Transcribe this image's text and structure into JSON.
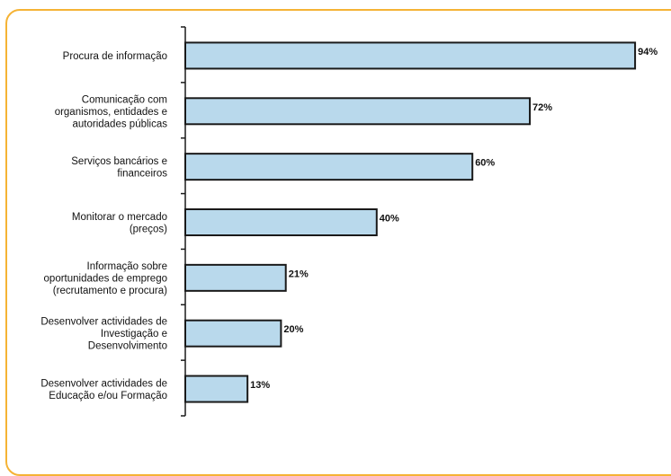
{
  "colors": {
    "frame_border": "#f5b335",
    "bar_fill": "#b9d9ec",
    "bar_stroke": "#1a1a1a",
    "axis": "#1a1a1a"
  },
  "chart_data": {
    "type": "bar",
    "orientation": "horizontal",
    "title": "",
    "xlabel": "",
    "ylabel": "",
    "xlim": [
      0,
      100
    ],
    "grid": false,
    "categories": [
      [
        "Procura de informação"
      ],
      [
        "Comunicação com",
        "organismos, entidades e",
        "autoridades públicas"
      ],
      [
        "Serviços bancários e",
        "financeiros"
      ],
      [
        "Monitorar o mercado",
        "(preços)"
      ],
      [
        "Informação sobre",
        "oportunidades de emprego",
        "(recrutamento e procura)"
      ],
      [
        "Desenvolver actividades de",
        "Investigação e",
        "Desenvolvimento"
      ],
      [
        "Desenvolver actividades de",
        "Educação e/ou Formação"
      ]
    ],
    "values": [
      94,
      72,
      60,
      40,
      21,
      20,
      13
    ],
    "value_labels": [
      "94%",
      "72%",
      "60%",
      "40%",
      "21%",
      "20%",
      "13%"
    ]
  }
}
